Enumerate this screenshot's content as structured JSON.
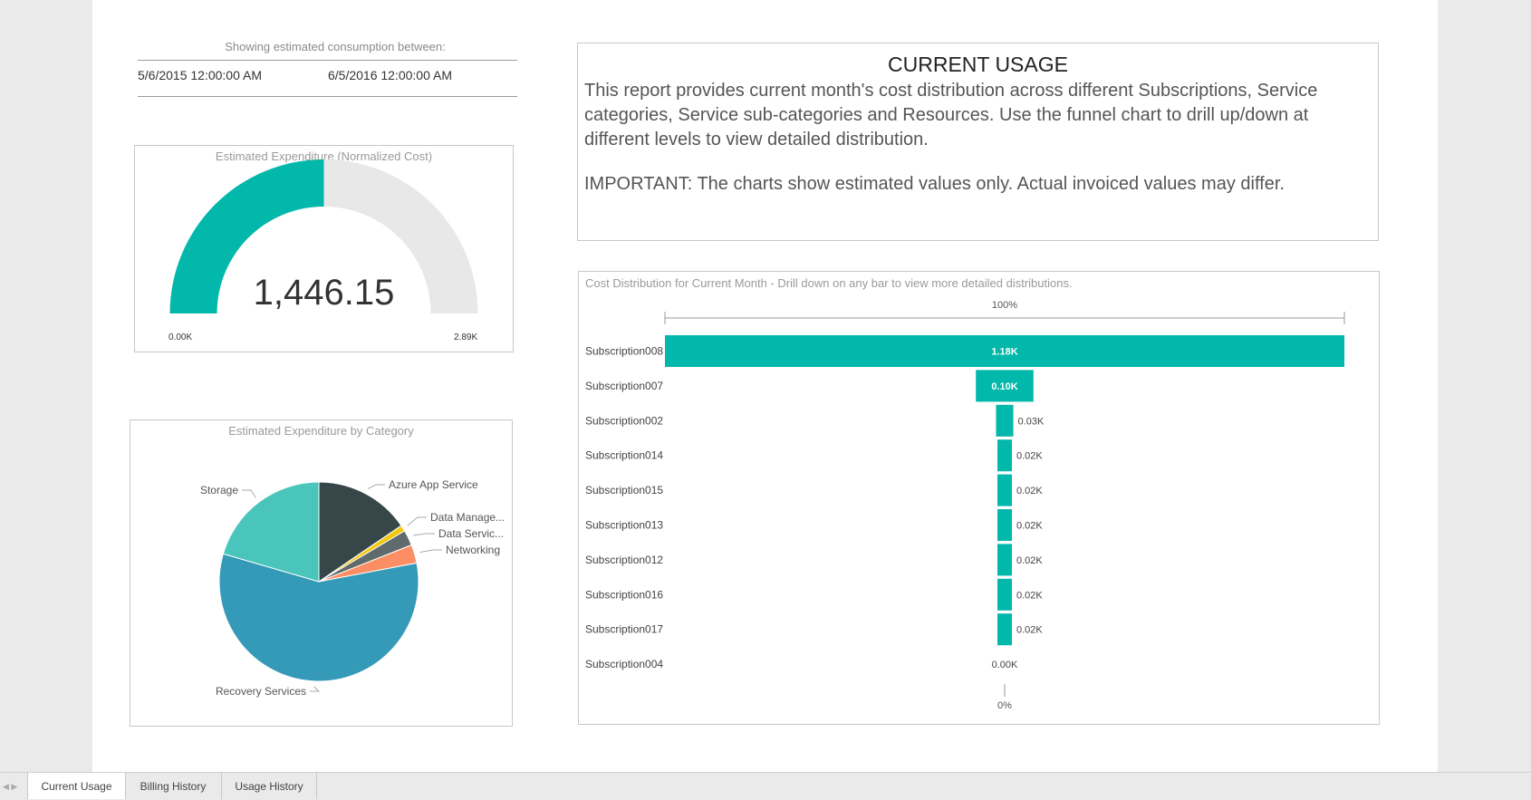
{
  "consumption": {
    "caption": "Showing estimated consumption between:",
    "start": "5/6/2015 12:00:00 AM",
    "end": "6/5/2016 12:00:00 AM"
  },
  "gauge": {
    "title": "Estimated Expenditure (Normalized Cost)",
    "value_label": "1,446.15",
    "min_label": "0.00K",
    "max_label": "2.89K",
    "fraction": 0.5,
    "fill_color": "#01b8aa",
    "track_color": "#e8e8e8"
  },
  "pie": {
    "title": "Estimated Expenditure by Category"
  },
  "usage": {
    "title": "CURRENT USAGE",
    "paragraph": "This report provides current month's cost distribution across different Subscriptions, Service categories, Service sub-categories and Resources. Use the funnel chart to drill up/down at different levels to view detailed distribution.",
    "important": "IMPORTANT: The charts show estimated values only. Actual invoiced values may differ."
  },
  "funnel": {
    "title": "Cost Distribution for Current Month - Drill down on any bar to view more detailed distributions.",
    "top_percent": "100%",
    "bottom_percent": "0%"
  },
  "chart_data": [
    {
      "type": "pie",
      "title": "Estimated Expenditure by Category",
      "categories": [
        "Azure App Service",
        "Data Manage...",
        "Data Servic...",
        "Networking",
        "Recovery Services",
        "Storage"
      ],
      "values": [
        15.5,
        1.0,
        2.5,
        3.0,
        57.5,
        20.5
      ],
      "colors": [
        "#374649",
        "#f2c80f",
        "#5f6b6d",
        "#fd8d62",
        "#3599b8",
        "#4ac5bb"
      ]
    },
    {
      "type": "bar",
      "title": "Cost Distribution for Current Month - Drill down on any bar to view more detailed distributions.",
      "categories": [
        "Subscription008",
        "Subscription007",
        "Subscription002",
        "Subscription014",
        "Subscription015",
        "Subscription013",
        "Subscription012",
        "Subscription016",
        "Subscription017",
        "Subscription004"
      ],
      "values": [
        1.18,
        0.1,
        0.03,
        0.02,
        0.02,
        0.02,
        0.02,
        0.02,
        0.02,
        0.0
      ],
      "labels": [
        "1.18K",
        "0.10K",
        "0.03K",
        "0.02K",
        "0.02K",
        "0.02K",
        "0.02K",
        "0.02K",
        "0.02K",
        "0.00K"
      ],
      "color": "#01b8aa"
    }
  ],
  "tabs": [
    {
      "label": "Current Usage",
      "active": true
    },
    {
      "label": "Billing History",
      "active": false
    },
    {
      "label": "Usage History",
      "active": false
    }
  ]
}
